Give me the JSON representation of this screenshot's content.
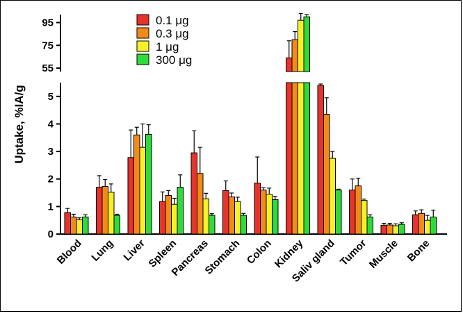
{
  "chart_data": {
    "type": "bar",
    "title": "",
    "xlabel": "",
    "ylabel": "Uptake, %IA/g",
    "categories": [
      "Blood",
      "Lung",
      "Liver",
      "Spleen",
      "Pancreas",
      "Stomach",
      "Colon",
      "Kidney",
      "Saliv gland",
      "Tumor",
      "Muscle",
      "Bone"
    ],
    "y_axis_lower": {
      "range": [
        0,
        5.5
      ],
      "ticks": [
        "0",
        "1",
        "2",
        "3",
        "4",
        "5"
      ],
      "tick_values": [
        0,
        1,
        2,
        3,
        4,
        5
      ]
    },
    "y_axis_upper": {
      "range": [
        52,
        102
      ],
      "ticks": [
        "55",
        "75",
        "95"
      ],
      "tick_values": [
        55,
        75,
        95
      ]
    },
    "broken_axis": true,
    "grid": false,
    "legend_position": "top-center",
    "series": [
      {
        "name": "0.1 μg",
        "color": "#e8332a",
        "values": [
          0.78,
          1.7,
          2.78,
          1.18,
          2.95,
          1.58,
          1.85,
          64,
          5.4,
          1.6,
          0.32,
          0.7
        ],
        "errors": [
          0.15,
          0.42,
          1.0,
          0.35,
          0.8,
          0.35,
          0.95,
          15,
          0.05,
          0.4,
          0.07,
          0.14
        ]
      },
      {
        "name": "0.3 μg",
        "color": "#f28a1a",
        "values": [
          0.62,
          1.73,
          3.6,
          1.4,
          2.2,
          1.35,
          1.6,
          80,
          4.35,
          1.75,
          0.33,
          0.75
        ],
        "errors": [
          0.1,
          0.25,
          0.28,
          0.18,
          0.95,
          0.14,
          0.08,
          7,
          0.6,
          0.28,
          0.06,
          0.13
        ]
      },
      {
        "name": "1 μg",
        "color": "#f6f02a",
        "values": [
          0.52,
          1.52,
          3.15,
          1.08,
          1.28,
          1.18,
          1.45,
          97,
          2.75,
          1.22,
          0.3,
          0.5
        ],
        "errors": [
          0.07,
          0.3,
          0.85,
          0.22,
          0.2,
          0.16,
          0.22,
          6,
          0.25,
          0.05,
          0.07,
          0.18
        ]
      },
      {
        "name": "300 μg",
        "color": "#2fdb3a",
        "values": [
          0.62,
          0.68,
          3.62,
          1.7,
          0.68,
          0.68,
          1.25,
          100,
          1.6,
          0.62,
          0.35,
          0.62
        ],
        "errors": [
          0.08,
          0.04,
          0.35,
          0.45,
          0.06,
          0.07,
          0.12,
          2,
          0.03,
          0.08,
          0.06,
          0.25
        ]
      }
    ]
  }
}
